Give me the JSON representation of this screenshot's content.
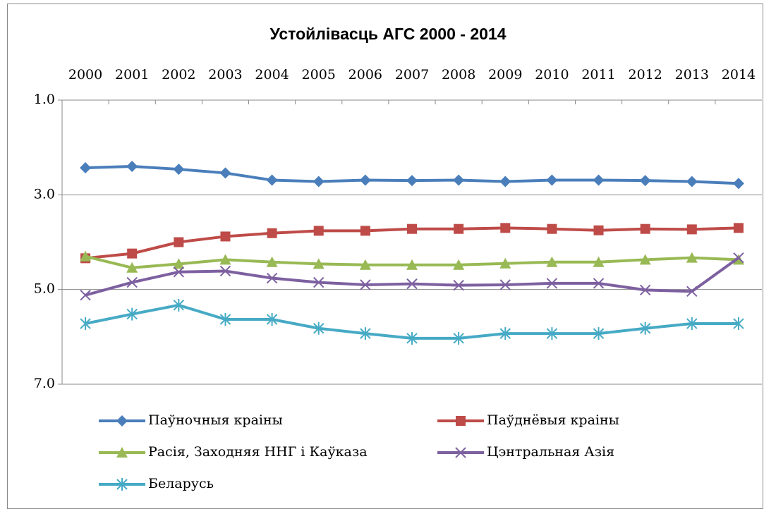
{
  "chart_data": {
    "type": "line",
    "title": "Устойлівасць АГС 2000 - 2014",
    "categories": [
      "2000",
      "2001",
      "2002",
      "2003",
      "2004",
      "2005",
      "2006",
      "2007",
      "2008",
      "2009",
      "2010",
      "2011",
      "2012",
      "2013",
      "2014"
    ],
    "ylim": [
      1,
      7
    ],
    "y_inverted": true,
    "x_axis_position": "top",
    "grid": true,
    "yticks": [
      {
        "value": 1,
        "label": "1.0"
      },
      {
        "value": 3,
        "label": "3.0"
      },
      {
        "value": 5,
        "label": "5.0"
      },
      {
        "value": 7,
        "label": "7.0"
      }
    ],
    "legend": "bottom",
    "series": [
      {
        "name": "Паўночныя краіны",
        "color": "#4a7ebb",
        "marker": "diamond",
        "values": [
          2.43,
          2.4,
          2.46,
          2.54,
          2.69,
          2.72,
          2.69,
          2.7,
          2.69,
          2.72,
          2.69,
          2.69,
          2.7,
          2.72,
          2.76
        ]
      },
      {
        "name": "Паўднёвыя краіны",
        "color": "#be4b48",
        "marker": "square",
        "values": [
          4.34,
          4.24,
          4.0,
          3.88,
          3.81,
          3.76,
          3.76,
          3.72,
          3.72,
          3.7,
          3.72,
          3.75,
          3.72,
          3.73,
          3.7
        ]
      },
      {
        "name": "Расія, Заходняя ННГ і Каўказа",
        "color": "#98b954",
        "marker": "triangle",
        "values": [
          4.3,
          4.54,
          4.46,
          4.37,
          4.42,
          4.46,
          4.48,
          4.48,
          4.48,
          4.45,
          4.42,
          4.42,
          4.37,
          4.33,
          4.37
        ]
      },
      {
        "name": "Цэнтральная Азія",
        "color": "#7d60a0",
        "marker": "x",
        "values": [
          5.12,
          4.85,
          4.63,
          4.61,
          4.76,
          4.85,
          4.9,
          4.88,
          4.91,
          4.9,
          4.87,
          4.87,
          5.01,
          5.04,
          4.33
        ]
      },
      {
        "name": "Беларусь",
        "color": "#46aac5",
        "marker": "star",
        "values": [
          5.72,
          5.52,
          5.33,
          5.63,
          5.63,
          5.82,
          5.93,
          6.03,
          6.03,
          5.93,
          5.93,
          5.93,
          5.82,
          5.72,
          5.72
        ]
      }
    ]
  }
}
